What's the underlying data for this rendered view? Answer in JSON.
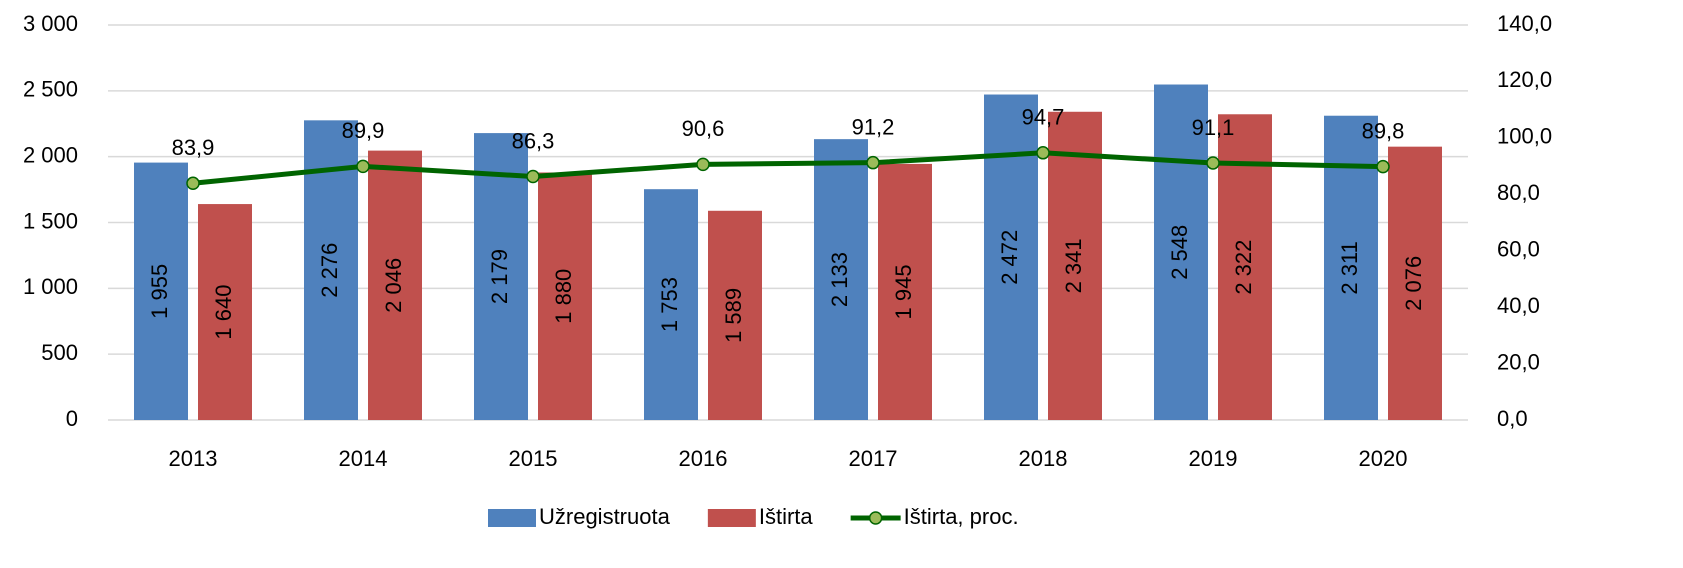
{
  "chart_data": {
    "type": "bar",
    "categories": [
      "2013",
      "2014",
      "2015",
      "2016",
      "2017",
      "2018",
      "2019",
      "2020"
    ],
    "series": [
      {
        "name": "Užregistruota",
        "color": "#4f81bd",
        "values": [
          1955,
          2276,
          2179,
          1753,
          2133,
          2472,
          2548,
          2311
        ],
        "value_labels": [
          "1 955",
          "2 276",
          "2 179",
          "1 753",
          "2 133",
          "2 472",
          "2 548",
          "2 311"
        ]
      },
      {
        "name": "Ištirta",
        "color": "#c0504d",
        "values": [
          1640,
          2046,
          1880,
          1589,
          1945,
          2341,
          2322,
          2076
        ],
        "value_labels": [
          "1 640",
          "2 046",
          "1 880",
          "1 589",
          "1 945",
          "2 341",
          "2 322",
          "2 076"
        ]
      },
      {
        "name": "Ištirta, proc.",
        "type": "line",
        "axis": "y2",
        "color": "#006400",
        "marker_color": "#9bbb59",
        "values": [
          83.9,
          89.9,
          86.3,
          90.6,
          91.2,
          94.7,
          91.1,
          89.8
        ],
        "value_labels": [
          "83,9",
          "89,9",
          "86,3",
          "90,6",
          "91,2",
          "94,7",
          "91,1",
          "89,8"
        ]
      }
    ],
    "ylim": [
      0,
      3000
    ],
    "yticks": [
      0,
      500,
      {
        "value": 1000,
        "label": "1 000"
      },
      {
        "value": 1500,
        "label": "1 500"
      },
      {
        "value": 2000,
        "label": "2 000"
      },
      {
        "value": 2500,
        "label": "2 500"
      },
      {
        "value": 3000,
        "label": "3 000"
      }
    ],
    "y2lim": [
      0,
      140
    ],
    "y2ticks": [
      {
        "value": 0,
        "label": "0,0"
      },
      {
        "value": 20,
        "label": "20,0"
      },
      {
        "value": 40,
        "label": "40,0"
      },
      {
        "value": 60,
        "label": "60,0"
      },
      {
        "value": 80,
        "label": "80,0"
      },
      {
        "value": 100,
        "label": "100,0"
      },
      {
        "value": 120,
        "label": "120,0"
      },
      {
        "value": 140,
        "label": "140,0"
      }
    ],
    "grid": true,
    "legend": "bottom"
  }
}
